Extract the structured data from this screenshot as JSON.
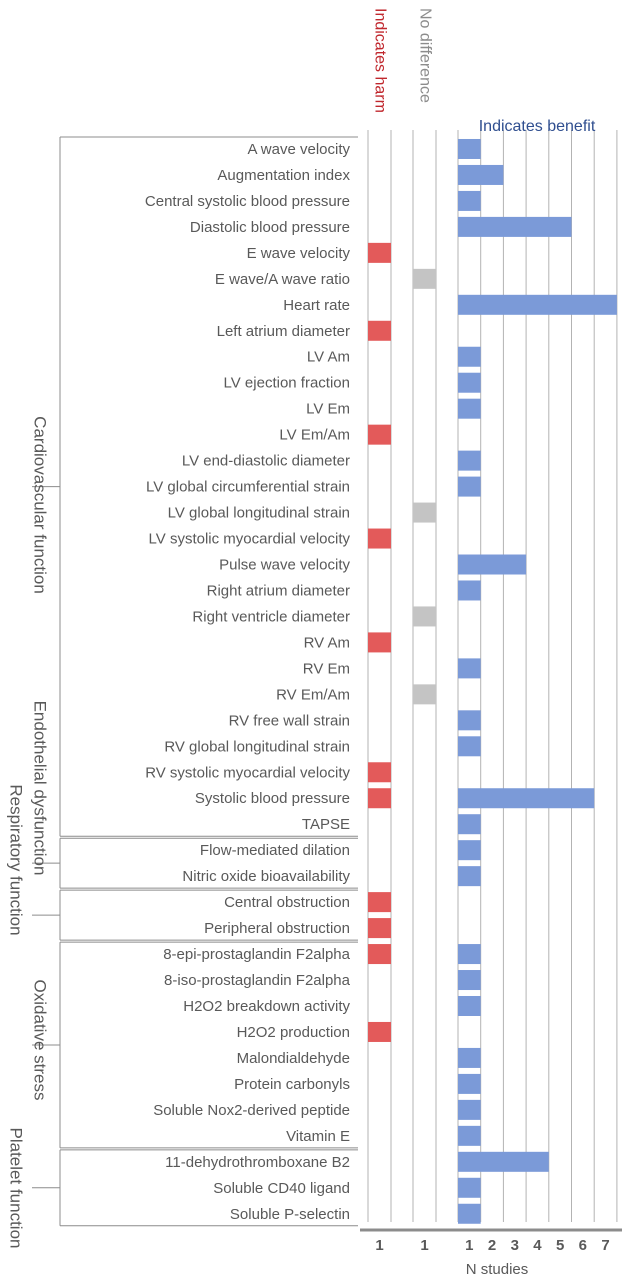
{
  "chart_data": {
    "type": "bar",
    "title": "",
    "xlabel": "N studies",
    "columns": [
      {
        "name": "Indicates harm",
        "color": "#e35a5a",
        "max": 1,
        "ticks": [
          "1"
        ]
      },
      {
        "name": "No difference",
        "color": "#c4c4c4",
        "max": 1,
        "ticks": [
          "1"
        ]
      },
      {
        "name": "Indicates benefit",
        "color": "#7b9ad8",
        "max": 7,
        "ticks": [
          "1",
          "2",
          "3",
          "4",
          "5",
          "6",
          "7"
        ]
      }
    ],
    "header_colors": {
      "harm": "#c0272d",
      "nodiff": "#8c8c8c",
      "benefit": "#2f4e8f"
    },
    "groups": [
      {
        "name": "Cardiovascular function",
        "start": 0,
        "end": 26
      },
      {
        "name": "Endothelial dysfunction",
        "start": 27,
        "end": 28
      },
      {
        "name": "Respiratory function",
        "start": 29,
        "end": 30
      },
      {
        "name": "Oxidative stress",
        "start": 31,
        "end": 38
      },
      {
        "name": "Platelet function",
        "start": 39,
        "end": 41
      }
    ],
    "outcomes": [
      {
        "label": "A wave velocity",
        "harm": 0,
        "nodiff": 0,
        "benefit": 1
      },
      {
        "label": "Augmentation index",
        "harm": 0,
        "nodiff": 0,
        "benefit": 2
      },
      {
        "label": "Central systolic blood pressure",
        "harm": 0,
        "nodiff": 0,
        "benefit": 1
      },
      {
        "label": "Diastolic blood pressure",
        "harm": 0,
        "nodiff": 0,
        "benefit": 5
      },
      {
        "label": "E wave velocity",
        "harm": 1,
        "nodiff": 0,
        "benefit": 0
      },
      {
        "label": "E wave/A wave ratio",
        "harm": 0,
        "nodiff": 1,
        "benefit": 0
      },
      {
        "label": "Heart rate",
        "harm": 0,
        "nodiff": 0,
        "benefit": 7
      },
      {
        "label": "Left atrium diameter",
        "harm": 1,
        "nodiff": 0,
        "benefit": 0
      },
      {
        "label": "LV Am",
        "harm": 0,
        "nodiff": 0,
        "benefit": 1
      },
      {
        "label": "LV ejection fraction",
        "harm": 0,
        "nodiff": 0,
        "benefit": 1
      },
      {
        "label": "LV Em",
        "harm": 0,
        "nodiff": 0,
        "benefit": 1
      },
      {
        "label": "LV Em/Am",
        "harm": 1,
        "nodiff": 0,
        "benefit": 0
      },
      {
        "label": "LV end-diastolic diameter",
        "harm": 0,
        "nodiff": 0,
        "benefit": 1
      },
      {
        "label": "LV global circumferential strain",
        "harm": 0,
        "nodiff": 0,
        "benefit": 1
      },
      {
        "label": "LV global longitudinal strain",
        "harm": 0,
        "nodiff": 1,
        "benefit": 0
      },
      {
        "label": "LV systolic myocardial velocity",
        "harm": 1,
        "nodiff": 0,
        "benefit": 0
      },
      {
        "label": "Pulse wave velocity",
        "harm": 0,
        "nodiff": 0,
        "benefit": 3
      },
      {
        "label": "Right atrium diameter",
        "harm": 0,
        "nodiff": 0,
        "benefit": 1
      },
      {
        "label": "Right ventricle diameter",
        "harm": 0,
        "nodiff": 1,
        "benefit": 0
      },
      {
        "label": "RV Am",
        "harm": 1,
        "nodiff": 0,
        "benefit": 0
      },
      {
        "label": "RV Em",
        "harm": 0,
        "nodiff": 0,
        "benefit": 1
      },
      {
        "label": "RV Em/Am",
        "harm": 0,
        "nodiff": 1,
        "benefit": 0
      },
      {
        "label": "RV free wall strain",
        "harm": 0,
        "nodiff": 0,
        "benefit": 1
      },
      {
        "label": "RV global longitudinal strain",
        "harm": 0,
        "nodiff": 0,
        "benefit": 1
      },
      {
        "label": "RV systolic myocardial velocity",
        "harm": 1,
        "nodiff": 0,
        "benefit": 0
      },
      {
        "label": "Systolic blood pressure",
        "harm": 1,
        "nodiff": 0,
        "benefit": 6
      },
      {
        "label": "TAPSE",
        "harm": 0,
        "nodiff": 0,
        "benefit": 1
      },
      {
        "label": "Flow-mediated dilation",
        "harm": 0,
        "nodiff": 0,
        "benefit": 1
      },
      {
        "label": "Nitric oxide bioavailability",
        "harm": 0,
        "nodiff": 0,
        "benefit": 1
      },
      {
        "label": "Central obstruction",
        "harm": 1,
        "nodiff": 0,
        "benefit": 0
      },
      {
        "label": "Peripheral obstruction",
        "harm": 1,
        "nodiff": 0,
        "benefit": 0
      },
      {
        "label": "8-epi-prostaglandin F2alpha",
        "harm": 1,
        "nodiff": 0,
        "benefit": 1
      },
      {
        "label": "8-iso-prostaglandin F2alpha",
        "harm": 0,
        "nodiff": 0,
        "benefit": 1
      },
      {
        "label": "H2O2 breakdown activity",
        "harm": 0,
        "nodiff": 0,
        "benefit": 1
      },
      {
        "label": "H2O2 production",
        "harm": 1,
        "nodiff": 0,
        "benefit": 0
      },
      {
        "label": "Malondialdehyde",
        "harm": 0,
        "nodiff": 0,
        "benefit": 1
      },
      {
        "label": "Protein carbonyls",
        "harm": 0,
        "nodiff": 0,
        "benefit": 1
      },
      {
        "label": "Soluble Nox2-derived peptide",
        "harm": 0,
        "nodiff": 0,
        "benefit": 1
      },
      {
        "label": "Vitamin E",
        "harm": 0,
        "nodiff": 0,
        "benefit": 1
      },
      {
        "label": "11-dehydrothromboxane B2",
        "harm": 0,
        "nodiff": 0,
        "benefit": 4
      },
      {
        "label": "Soluble CD40 ligand",
        "harm": 0,
        "nodiff": 0,
        "benefit": 1
      },
      {
        "label": "Soluble P-selectin",
        "harm": 0,
        "nodiff": 0,
        "benefit": 1
      }
    ]
  }
}
